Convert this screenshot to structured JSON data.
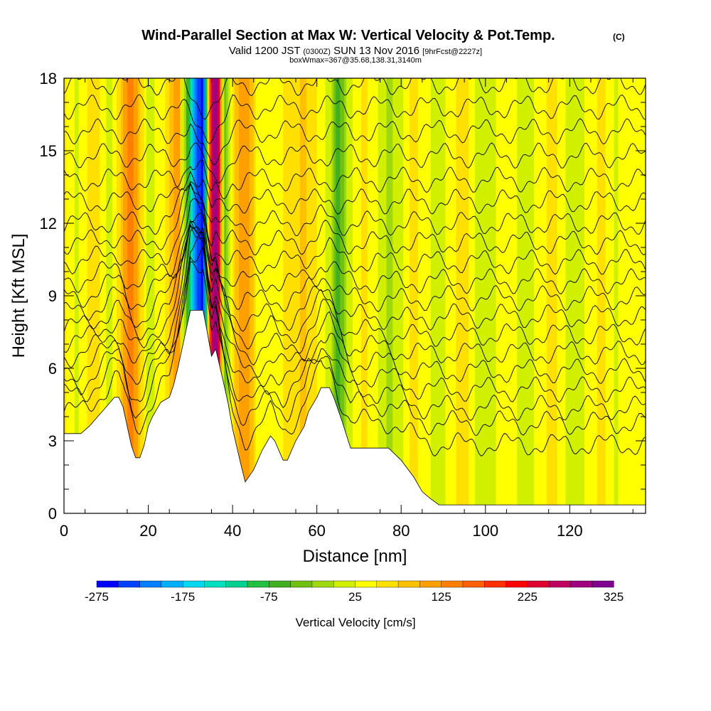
{
  "chart_data": {
    "type": "heatmap",
    "title": "Wind-Parallel Section at Max W: Vertical Velocity & Pot.Temp.",
    "title_mark": "(C)",
    "subtitle": {
      "prefix": "Valid 1200 JST",
      "utc": "(0300Z)",
      "date": "SUN 13 Nov 2016",
      "fcst": "[9hrFcst@2227z]"
    },
    "subtitle2": "boxWmax=367@35.68,138.31,3140m",
    "xlabel": "Distance [nm]",
    "ylabel": "Height [Kft MSL]",
    "xlim": [
      0,
      138
    ],
    "ylim": [
      0,
      18
    ],
    "x_ticks": [
      0,
      20,
      40,
      60,
      80,
      100,
      120
    ],
    "y_ticks": [
      0,
      3,
      6,
      9,
      12,
      15,
      18
    ],
    "colorbar": {
      "label": "Vertical Velocity [cm/s]",
      "min": -275,
      "max": 325,
      "step": 25,
      "tick_values": [
        -275,
        -175,
        -75,
        25,
        125,
        225,
        325
      ],
      "colors": [
        "#0000ff",
        "#0040ff",
        "#0080ff",
        "#00b0ff",
        "#00d8f0",
        "#00e0c0",
        "#00d090",
        "#20c040",
        "#40b020",
        "#70c010",
        "#a0d810",
        "#d0f000",
        "#ffff00",
        "#ffe000",
        "#ffc000",
        "#ffa000",
        "#ff8000",
        "#ff6000",
        "#ff3000",
        "#ff0000",
        "#e00030",
        "#c00060",
        "#a00080",
        "#800090"
      ]
    },
    "terrain": [
      [
        0,
        3.3
      ],
      [
        4,
        3.3
      ],
      [
        6,
        3.6
      ],
      [
        8,
        4.0
      ],
      [
        10,
        4.4
      ],
      [
        12,
        4.8
      ],
      [
        13,
        4.8
      ],
      [
        14,
        4.4
      ],
      [
        15,
        3.6
      ],
      [
        16,
        2.8
      ],
      [
        17,
        2.3
      ],
      [
        18,
        2.3
      ],
      [
        19,
        2.8
      ],
      [
        20,
        3.6
      ],
      [
        21,
        4.0
      ],
      [
        23,
        4.6
      ],
      [
        25,
        4.8
      ],
      [
        26,
        5.3
      ],
      [
        27,
        6.0
      ],
      [
        28,
        6.8
      ],
      [
        29,
        7.6
      ],
      [
        30,
        8.4
      ],
      [
        33,
        8.4
      ],
      [
        34,
        7.5
      ],
      [
        35,
        6.5
      ],
      [
        36,
        6.8
      ],
      [
        38,
        5.3
      ],
      [
        39,
        4.5
      ],
      [
        40,
        3.5
      ],
      [
        42,
        2.0
      ],
      [
        43,
        1.3
      ],
      [
        45,
        1.8
      ],
      [
        47,
        2.6
      ],
      [
        49,
        3.2
      ],
      [
        50,
        3.0
      ],
      [
        52,
        2.2
      ],
      [
        53,
        2.2
      ],
      [
        55,
        3.0
      ],
      [
        57,
        3.6
      ],
      [
        58,
        4.2
      ],
      [
        60,
        4.8
      ],
      [
        61,
        5.2
      ],
      [
        63,
        5.2
      ],
      [
        64,
        4.8
      ],
      [
        66,
        3.8
      ],
      [
        68,
        2.7
      ],
      [
        77,
        2.7
      ],
      [
        80,
        2.2
      ],
      [
        83,
        1.5
      ],
      [
        85,
        0.9
      ],
      [
        87,
        0.6
      ],
      [
        89,
        0.35
      ],
      [
        92,
        0.35
      ],
      [
        138,
        0.35
      ]
    ],
    "theta_contours": [
      {
        "base": 4.0,
        "labels": []
      },
      {
        "base": 4.7,
        "labels": []
      },
      {
        "base": 5.2,
        "labels": []
      },
      {
        "base": 5.8,
        "labels": []
      },
      {
        "base": 6.4,
        "labels": []
      },
      {
        "base": 7.0,
        "labels": []
      },
      {
        "base": 7.6,
        "labels": []
      },
      {
        "base": 8.2,
        "labels": []
      },
      {
        "base": 8.9,
        "labels": []
      },
      {
        "base": 9.6,
        "labels": []
      },
      {
        "base": 10.4,
        "labels": []
      },
      {
        "base": 11.2,
        "labels": []
      },
      {
        "base": 12.0,
        "labels": []
      },
      {
        "base": 12.9,
        "labels": []
      },
      {
        "base": 13.8,
        "labels": []
      },
      {
        "base": 14.8,
        "labels": []
      },
      {
        "base": 15.8,
        "labels": []
      },
      {
        "base": 16.8,
        "labels": []
      },
      {
        "base": 17.8,
        "labels": []
      }
    ],
    "w_bands": [
      {
        "x": 0,
        "w": 55
      },
      {
        "x": 3,
        "w": 20
      },
      {
        "x": 7,
        "w": 70
      },
      {
        "x": 11,
        "w": 10
      },
      {
        "x": 16,
        "w": 150
      },
      {
        "x": 20,
        "w": 10
      },
      {
        "x": 24,
        "w": 50
      },
      {
        "x": 27,
        "w": 120
      },
      {
        "x": 29.5,
        "w": -80
      },
      {
        "x": 31,
        "w": -200
      },
      {
        "x": 33,
        "w": -275
      },
      {
        "x": 35,
        "w": 250
      },
      {
        "x": 36.5,
        "w": 300
      },
      {
        "x": 38,
        "w": -60
      },
      {
        "x": 40,
        "w": 60
      },
      {
        "x": 43,
        "w": 130
      },
      {
        "x": 46,
        "w": 40
      },
      {
        "x": 49,
        "w": 25
      },
      {
        "x": 53,
        "w": 60
      },
      {
        "x": 57,
        "w": 80
      },
      {
        "x": 60,
        "w": 50
      },
      {
        "x": 63,
        "w": 10
      },
      {
        "x": 65,
        "w": -60
      },
      {
        "x": 68,
        "w": 20
      },
      {
        "x": 71,
        "w": 55
      },
      {
        "x": 74,
        "w": 35
      },
      {
        "x": 77,
        "w": -10
      },
      {
        "x": 80,
        "w": 20
      },
      {
        "x": 83,
        "w": 60
      },
      {
        "x": 86,
        "w": 35
      },
      {
        "x": 89,
        "w": 5
      },
      {
        "x": 92,
        "w": 40
      },
      {
        "x": 95,
        "w": 65
      },
      {
        "x": 98,
        "w": 20
      },
      {
        "x": 101,
        "w": 0
      },
      {
        "x": 104,
        "w": 50
      },
      {
        "x": 107,
        "w": 30
      },
      {
        "x": 110,
        "w": 5
      },
      {
        "x": 113,
        "w": 40
      },
      {
        "x": 116,
        "w": 60
      },
      {
        "x": 119,
        "w": 25
      },
      {
        "x": 122,
        "w": 5
      },
      {
        "x": 125,
        "w": 45
      },
      {
        "x": 128,
        "w": 55
      },
      {
        "x": 131,
        "w": 20
      },
      {
        "x": 134,
        "w": 40
      },
      {
        "x": 138,
        "w": 30
      }
    ]
  }
}
